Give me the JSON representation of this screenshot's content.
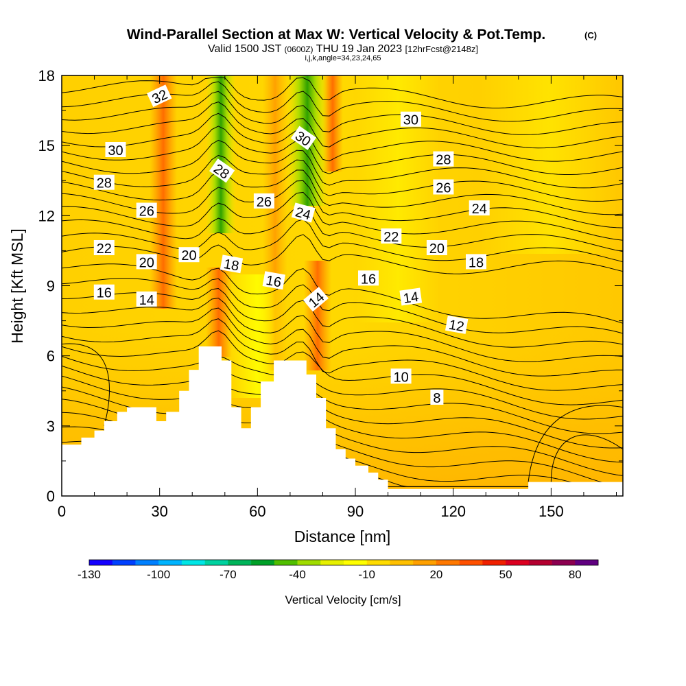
{
  "chart_data": {
    "type": "heatmap",
    "title": "Wind-Parallel Section at Max W: Vertical Velocity & Pot.Temp.",
    "title_mark": "(C)",
    "subtitle_parts": [
      "Valid 1500 JST",
      "(0600Z)",
      "THU 19 Jan 2023",
      "[12hrFcst@2148z]"
    ],
    "subtitle2": "i,j,k,angle=34,23,24,65",
    "xlabel": "Distance [nm]",
    "ylabel": "Height [Kft MSL]",
    "xlim": [
      0,
      172
    ],
    "ylim": [
      0,
      18
    ],
    "xticks": [
      0,
      30,
      60,
      90,
      120,
      150
    ],
    "yticks": [
      0,
      3,
      6,
      9,
      12,
      15,
      18
    ],
    "colorbar": {
      "label": "Vertical Velocity [cm/s]",
      "tick_labels": [
        "-130",
        "-100",
        "-70",
        "-40",
        "-10",
        "20",
        "50",
        "80"
      ],
      "colors": [
        "#1400ff",
        "#0040ff",
        "#0080ff",
        "#00b4ff",
        "#00e6e6",
        "#00d2a0",
        "#00b45a",
        "#00a028",
        "#50be00",
        "#a0dc00",
        "#e6f000",
        "#ffff00",
        "#ffdc00",
        "#ffc000",
        "#ffa000",
        "#ff7800",
        "#ff5000",
        "#f02000",
        "#dc0020",
        "#b40030",
        "#8c0050",
        "#600080"
      ]
    },
    "terrain": [
      [
        0,
        2.2
      ],
      [
        6,
        2.2
      ],
      [
        6,
        2.5
      ],
      [
        10,
        2.5
      ],
      [
        10,
        2.8
      ],
      [
        13,
        2.8
      ],
      [
        13,
        3.2
      ],
      [
        17,
        3.2
      ],
      [
        17,
        3.6
      ],
      [
        20,
        3.6
      ],
      [
        20,
        3.8
      ],
      [
        29,
        3.8
      ],
      [
        29,
        3.2
      ],
      [
        32,
        3.2
      ],
      [
        32,
        3.6
      ],
      [
        36,
        3.6
      ],
      [
        36,
        4.5
      ],
      [
        39,
        4.5
      ],
      [
        39,
        5.4
      ],
      [
        42,
        5.4
      ],
      [
        42,
        6.4
      ],
      [
        49,
        6.4
      ],
      [
        49,
        5.8
      ],
      [
        52,
        5.8
      ],
      [
        52,
        3.8
      ],
      [
        55,
        3.8
      ],
      [
        55,
        2.9
      ],
      [
        58,
        2.9
      ],
      [
        58,
        3.8
      ],
      [
        61,
        3.8
      ],
      [
        61,
        4.9
      ],
      [
        65,
        4.9
      ],
      [
        65,
        5.8
      ],
      [
        75,
        5.8
      ],
      [
        75,
        5.2
      ],
      [
        78,
        5.2
      ],
      [
        78,
        4.2
      ],
      [
        81,
        4.2
      ],
      [
        81,
        2.9
      ],
      [
        84,
        2.9
      ],
      [
        84,
        2.0
      ],
      [
        87,
        2.0
      ],
      [
        87,
        1.6
      ],
      [
        90,
        1.6
      ],
      [
        90,
        1.3
      ],
      [
        94,
        1.3
      ],
      [
        94,
        1.0
      ],
      [
        97,
        1.0
      ],
      [
        97,
        0.7
      ],
      [
        100,
        0.7
      ],
      [
        100,
        0.3
      ],
      [
        143,
        0.3
      ],
      [
        143,
        0.6
      ],
      [
        172,
        0.6
      ],
      [
        172,
        0
      ]
    ],
    "theta_labels": [
      {
        "text": "32",
        "x": 30,
        "y": 17.1,
        "angle": -25
      },
      {
        "text": "30",
        "x": 16.5,
        "y": 14.8,
        "angle": 0
      },
      {
        "text": "28",
        "x": 13,
        "y": 13.4,
        "angle": 0
      },
      {
        "text": "26",
        "x": 26,
        "y": 12.2,
        "angle": 0
      },
      {
        "text": "22",
        "x": 13,
        "y": 10.6,
        "angle": 0
      },
      {
        "text": "20",
        "x": 26,
        "y": 10.0,
        "angle": 0
      },
      {
        "text": "20",
        "x": 39,
        "y": 10.3,
        "angle": 0
      },
      {
        "text": "16",
        "x": 13,
        "y": 8.7,
        "angle": 0
      },
      {
        "text": "14",
        "x": 26,
        "y": 8.4,
        "angle": 0
      },
      {
        "text": "28",
        "x": 49,
        "y": 13.9,
        "angle": 35
      },
      {
        "text": "26",
        "x": 62,
        "y": 12.6,
        "angle": 0
      },
      {
        "text": "18",
        "x": 52,
        "y": 9.9,
        "angle": 10
      },
      {
        "text": "16",
        "x": 65,
        "y": 9.2,
        "angle": 10
      },
      {
        "text": "30",
        "x": 74,
        "y": 15.3,
        "angle": 35
      },
      {
        "text": "24",
        "x": 74,
        "y": 12.1,
        "angle": 15
      },
      {
        "text": "14",
        "x": 78,
        "y": 8.4,
        "angle": -40
      },
      {
        "text": "30",
        "x": 107,
        "y": 16.1,
        "angle": 0
      },
      {
        "text": "28",
        "x": 117,
        "y": 14.4,
        "angle": 0
      },
      {
        "text": "26",
        "x": 117,
        "y": 13.2,
        "angle": 0
      },
      {
        "text": "24",
        "x": 128,
        "y": 12.3,
        "angle": 0
      },
      {
        "text": "22",
        "x": 101,
        "y": 11.1,
        "angle": 0
      },
      {
        "text": "20",
        "x": 115,
        "y": 10.6,
        "angle": 0
      },
      {
        "text": "18",
        "x": 127,
        "y": 10.0,
        "angle": 0
      },
      {
        "text": "16",
        "x": 94,
        "y": 9.3,
        "angle": 0
      },
      {
        "text": "14",
        "x": 107,
        "y": 8.5,
        "angle": -8
      },
      {
        "text": "12",
        "x": 121,
        "y": 7.3,
        "angle": 10
      },
      {
        "text": "10",
        "x": 104,
        "y": 5.1,
        "angle": 0
      },
      {
        "text": "8",
        "x": 115,
        "y": 4.2,
        "angle": 0
      }
    ]
  }
}
